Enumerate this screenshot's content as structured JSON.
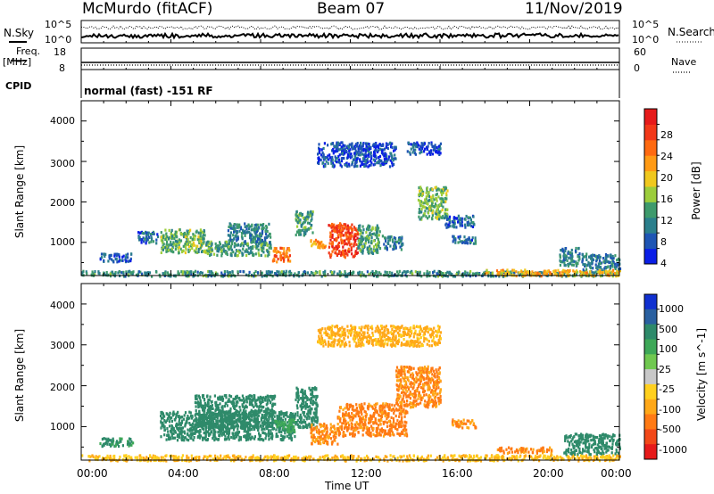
{
  "header": {
    "station": "McMurdo (fitACF)",
    "beam": "Beam 07",
    "date": "11/Nov/2019"
  },
  "top_panels": {
    "nsky_label": "N.Sky",
    "nsky_ticks": [
      "10^5",
      "10^0"
    ],
    "nsearch_label": "N.Search",
    "nsearch_ticks": [
      "10^5",
      "10^0"
    ],
    "freq_label": "Freq.",
    "freq_unit": "[MHz]",
    "freq_ticks": [
      "18",
      "8"
    ],
    "nave_label": "Nave",
    "nave_ticks": [
      "60",
      "0"
    ],
    "cpid_label": "CPID",
    "cpid_text": "normal (fast) -151 RF"
  },
  "chart_data": [
    {
      "type": "heatmap",
      "panel": "power",
      "ylabel": "Slant Range [km]",
      "xlabel": "",
      "ylim": [
        180,
        4500
      ],
      "yticks": [
        "1000",
        "2000",
        "3000",
        "4000"
      ],
      "colorbar": {
        "label": "Power [dB]",
        "ticks": [
          "4",
          "8",
          "12",
          "16",
          "20",
          "24",
          "28"
        ],
        "colors": [
          "#0a1ee6",
          "#1e55b4",
          "#2b7f8c",
          "#3e9a6c",
          "#9ccd3c",
          "#f0c81e",
          "#ff9a14",
          "#ff6a10",
          "#f23818",
          "#e61a1a"
        ]
      },
      "regions": [
        {
          "t": [
            0.8,
            2.2
          ],
          "r": [
            550,
            750
          ],
          "v": 7
        },
        {
          "t": [
            2.5,
            3.4
          ],
          "r": [
            1000,
            1300
          ],
          "v": 8
        },
        {
          "t": [
            3.5,
            5.5
          ],
          "r": [
            750,
            1350
          ],
          "v": 14
        },
        {
          "t": [
            5.5,
            8.5
          ],
          "r": [
            700,
            1050
          ],
          "v": 12
        },
        {
          "t": [
            6.5,
            8.4
          ],
          "r": [
            1000,
            1500
          ],
          "v": 10
        },
        {
          "t": [
            8.5,
            9.3
          ],
          "r": [
            550,
            900
          ],
          "v": 24
        },
        {
          "t": [
            9.5,
            10.3
          ],
          "r": [
            1200,
            1800
          ],
          "v": 12
        },
        {
          "t": [
            10.2,
            10.9
          ],
          "r": [
            900,
            1100
          ],
          "v": 22
        },
        {
          "t": [
            11.0,
            12.3
          ],
          "r": [
            650,
            1500
          ],
          "v": 27
        },
        {
          "t": [
            12.3,
            13.3
          ],
          "r": [
            750,
            1450
          ],
          "v": 12
        },
        {
          "t": [
            13.4,
            14.3
          ],
          "r": [
            850,
            1200
          ],
          "v": 9
        },
        {
          "t": [
            15.0,
            16.3
          ],
          "r": [
            1600,
            2400
          ],
          "v": 14
        },
        {
          "t": [
            16.2,
            17.5
          ],
          "r": [
            1400,
            1700
          ],
          "v": 8
        },
        {
          "t": [
            16.5,
            17.6
          ],
          "r": [
            1000,
            1200
          ],
          "v": 8
        },
        {
          "t": [
            10.5,
            14.0
          ],
          "r": [
            2900,
            3500
          ],
          "v": 6
        },
        {
          "t": [
            14.5,
            16.0
          ],
          "r": [
            3200,
            3500
          ],
          "v": 6
        },
        {
          "t": [
            0.0,
            24.0
          ],
          "r": [
            190,
            320
          ],
          "v": 11
        },
        {
          "t": [
            18.0,
            24.0
          ],
          "r": [
            200,
            350
          ],
          "v": 20
        },
        {
          "t": [
            21.3,
            22.2
          ],
          "r": [
            450,
            900
          ],
          "v": 10
        },
        {
          "t": [
            22.3,
            24.0
          ],
          "r": [
            350,
            750
          ],
          "v": 9
        }
      ]
    },
    {
      "type": "heatmap",
      "panel": "velocity",
      "ylabel": "Slant Range [km]",
      "xlabel": "Time UT",
      "ylim": [
        180,
        4500
      ],
      "yticks": [
        "1000",
        "2000",
        "3000",
        "4000"
      ],
      "xticks": [
        "00:00",
        "04:00",
        "08:00",
        "12:00",
        "16:00",
        "20:00",
        "00:00"
      ],
      "xlim": [
        0,
        24
      ],
      "colorbar": {
        "label": "Velocity [m s^-1]",
        "ticks": [
          "1000",
          "500",
          "100",
          "25",
          "-25",
          "-100",
          "-500",
          "-1000"
        ],
        "colors": [
          "#1030d0",
          "#2a60a0",
          "#2e8a6a",
          "#3ea858",
          "#70c850",
          "#c8c8c8",
          "#ffd01e",
          "#ffa818",
          "#ff7a14",
          "#f24818",
          "#e61a1a"
        ]
      },
      "regions": [
        {
          "t": [
            0.8,
            2.3
          ],
          "r": [
            550,
            750
          ],
          "v": 80
        },
        {
          "t": [
            3.5,
            9.5
          ],
          "r": [
            700,
            1400
          ],
          "v": 200
        },
        {
          "t": [
            5.0,
            8.6
          ],
          "r": [
            1000,
            1800
          ],
          "v": 180
        },
        {
          "t": [
            8.6,
            9.5
          ],
          "r": [
            900,
            1200
          ],
          "v": 50
        },
        {
          "t": [
            9.5,
            10.5
          ],
          "r": [
            1000,
            2000
          ],
          "v": 150
        },
        {
          "t": [
            10.2,
            11.4
          ],
          "r": [
            600,
            1100
          ],
          "v": -300
        },
        {
          "t": [
            11.4,
            14.5
          ],
          "r": [
            800,
            1600
          ],
          "v": -400
        },
        {
          "t": [
            14.0,
            16.0
          ],
          "r": [
            1500,
            2500
          ],
          "v": -350
        },
        {
          "t": [
            16.5,
            17.6
          ],
          "r": [
            1000,
            1200
          ],
          "v": -300
        },
        {
          "t": [
            10.5,
            16.0
          ],
          "r": [
            3000,
            3500
          ],
          "v": -80
        },
        {
          "t": [
            0.0,
            24.0
          ],
          "r": [
            190,
            330
          ],
          "v": -60
        },
        {
          "t": [
            18.5,
            21.0
          ],
          "r": [
            380,
            520
          ],
          "v": -350
        },
        {
          "t": [
            21.5,
            24.0
          ],
          "r": [
            350,
            850
          ],
          "v": 150
        }
      ]
    }
  ]
}
